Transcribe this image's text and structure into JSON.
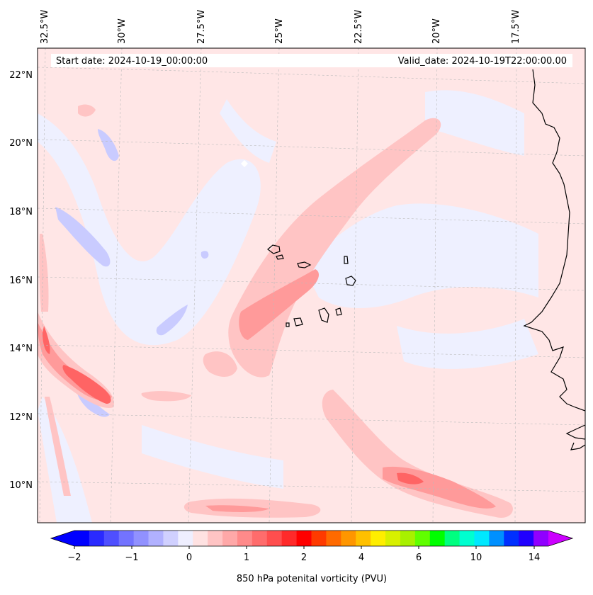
{
  "map": {
    "header_left": "Start date: 2024-10-19_00:00:00",
    "header_right": "Valid_date: 2024-10-19T22:00:00.00",
    "lon_labels": [
      "32.5°W",
      "30°W",
      "27.5°W",
      "25°W",
      "22.5°W",
      "20°W",
      "17.5°W"
    ],
    "lat_labels": [
      "22°N",
      "20°N",
      "18°N",
      "16°N",
      "14°N",
      "12°N",
      "10°N"
    ],
    "colors": {
      "background_pv": "#ffe6e6",
      "light_negative": "#eef0ff",
      "negative": "#c9cbff",
      "positive_low": "#ffc4c4",
      "positive_mid": "#ff9a9a",
      "positive_high": "#ff6464",
      "coastline": "#000000"
    }
  },
  "colorbar": {
    "label": "850 hPa potenital vorticity (PVU)",
    "ticks": [
      "−2",
      "−1",
      "0",
      "1",
      "2",
      "4",
      "6",
      "10",
      "14"
    ],
    "swatches": [
      "#0000ff",
      "#2a2aff",
      "#4f4fff",
      "#7373ff",
      "#9191ff",
      "#b1b1ff",
      "#d0d0ff",
      "#efefff",
      "#ffe2e2",
      "#ffc4c4",
      "#ffa8a8",
      "#ff8a8a",
      "#ff6c6c",
      "#ff4e4e",
      "#ff2a2a",
      "#ff0000",
      "#ff3a00",
      "#ff6a00",
      "#ff9600",
      "#ffc000",
      "#ffee00",
      "#d8f000",
      "#a8f000",
      "#60ff00",
      "#00ff00",
      "#00ff80",
      "#00ffd0",
      "#00e8ff",
      "#0090ff",
      "#0030ff",
      "#2000ff",
      "#9000ff"
    ],
    "left_extend": "#0000ff",
    "right_extend": "#cc00ff"
  }
}
